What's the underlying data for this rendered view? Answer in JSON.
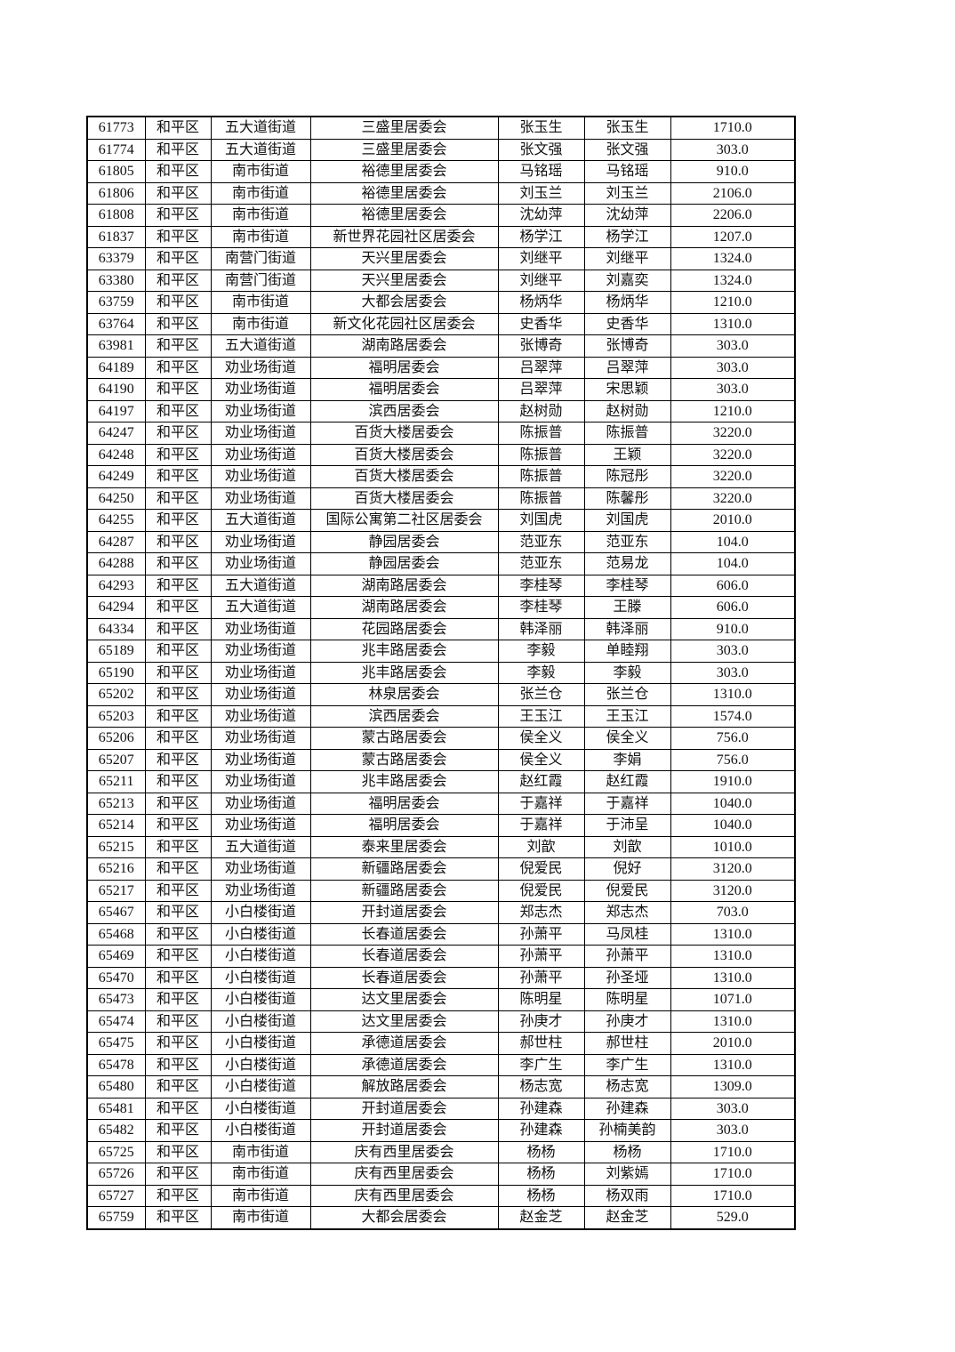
{
  "table": {
    "rows": [
      [
        "61773",
        "和平区",
        "五大道街道",
        "三盛里居委会",
        "张玉生",
        "张玉生",
        "1710.0"
      ],
      [
        "61774",
        "和平区",
        "五大道街道",
        "三盛里居委会",
        "张文强",
        "张文强",
        "303.0"
      ],
      [
        "61805",
        "和平区",
        "南市街道",
        "裕德里居委会",
        "马铭瑶",
        "马铭瑶",
        "910.0"
      ],
      [
        "61806",
        "和平区",
        "南市街道",
        "裕德里居委会",
        "刘玉兰",
        "刘玉兰",
        "2106.0"
      ],
      [
        "61808",
        "和平区",
        "南市街道",
        "裕德里居委会",
        "沈幼萍",
        "沈幼萍",
        "2206.0"
      ],
      [
        "61837",
        "和平区",
        "南市街道",
        "新世界花园社区居委会",
        "杨学江",
        "杨学江",
        "1207.0"
      ],
      [
        "63379",
        "和平区",
        "南营门街道",
        "天兴里居委会",
        "刘继平",
        "刘继平",
        "1324.0"
      ],
      [
        "63380",
        "和平区",
        "南营门街道",
        "天兴里居委会",
        "刘继平",
        "刘嘉奕",
        "1324.0"
      ],
      [
        "63759",
        "和平区",
        "南市街道",
        "大都会居委会",
        "杨炳华",
        "杨炳华",
        "1210.0"
      ],
      [
        "63764",
        "和平区",
        "南市街道",
        "新文化花园社区居委会",
        "史香华",
        "史香华",
        "1310.0"
      ],
      [
        "63981",
        "和平区",
        "五大道街道",
        "湖南路居委会",
        "张博奇",
        "张博奇",
        "303.0"
      ],
      [
        "64189",
        "和平区",
        "劝业场街道",
        "福明居委会",
        "吕翠萍",
        "吕翠萍",
        "303.0"
      ],
      [
        "64190",
        "和平区",
        "劝业场街道",
        "福明居委会",
        "吕翠萍",
        "宋思颖",
        "303.0"
      ],
      [
        "64197",
        "和平区",
        "劝业场街道",
        "滨西居委会",
        "赵树勋",
        "赵树勋",
        "1210.0"
      ],
      [
        "64247",
        "和平区",
        "劝业场街道",
        "百货大楼居委会",
        "陈振普",
        "陈振普",
        "3220.0"
      ],
      [
        "64248",
        "和平区",
        "劝业场街道",
        "百货大楼居委会",
        "陈振普",
        "王颖",
        "3220.0"
      ],
      [
        "64249",
        "和平区",
        "劝业场街道",
        "百货大楼居委会",
        "陈振普",
        "陈冠彤",
        "3220.0"
      ],
      [
        "64250",
        "和平区",
        "劝业场街道",
        "百货大楼居委会",
        "陈振普",
        "陈馨彤",
        "3220.0"
      ],
      [
        "64255",
        "和平区",
        "五大道街道",
        "国际公寓第二社区居委会",
        "刘国虎",
        "刘国虎",
        "2010.0"
      ],
      [
        "64287",
        "和平区",
        "劝业场街道",
        "静园居委会",
        "范亚东",
        "范亚东",
        "104.0"
      ],
      [
        "64288",
        "和平区",
        "劝业场街道",
        "静园居委会",
        "范亚东",
        "范易龙",
        "104.0"
      ],
      [
        "64293",
        "和平区",
        "五大道街道",
        "湖南路居委会",
        "李桂琴",
        "李桂琴",
        "606.0"
      ],
      [
        "64294",
        "和平区",
        "五大道街道",
        "湖南路居委会",
        "李桂琴",
        "王滕",
        "606.0"
      ],
      [
        "64334",
        "和平区",
        "劝业场街道",
        "花园路居委会",
        "韩泽丽",
        "韩泽丽",
        "910.0"
      ],
      [
        "65189",
        "和平区",
        "劝业场街道",
        "兆丰路居委会",
        "李毅",
        "单睦翔",
        "303.0"
      ],
      [
        "65190",
        "和平区",
        "劝业场街道",
        "兆丰路居委会",
        "李毅",
        "李毅",
        "303.0"
      ],
      [
        "65202",
        "和平区",
        "劝业场街道",
        "林泉居委会",
        "张兰仓",
        "张兰仓",
        "1310.0"
      ],
      [
        "65203",
        "和平区",
        "劝业场街道",
        "滨西居委会",
        "王玉江",
        "王玉江",
        "1574.0"
      ],
      [
        "65206",
        "和平区",
        "劝业场街道",
        "蒙古路居委会",
        "侯全义",
        "侯全义",
        "756.0"
      ],
      [
        "65207",
        "和平区",
        "劝业场街道",
        "蒙古路居委会",
        "侯全义",
        "李娟",
        "756.0"
      ],
      [
        "65211",
        "和平区",
        "劝业场街道",
        "兆丰路居委会",
        "赵红霞",
        "赵红霞",
        "1910.0"
      ],
      [
        "65213",
        "和平区",
        "劝业场街道",
        "福明居委会",
        "于嘉祥",
        "于嘉祥",
        "1040.0"
      ],
      [
        "65214",
        "和平区",
        "劝业场街道",
        "福明居委会",
        "于嘉祥",
        "于沛呈",
        "1040.0"
      ],
      [
        "65215",
        "和平区",
        "五大道街道",
        "泰来里居委会",
        "刘歆",
        "刘歆",
        "1010.0"
      ],
      [
        "65216",
        "和平区",
        "劝业场街道",
        "新疆路居委会",
        "倪爱民",
        "倪好",
        "3120.0"
      ],
      [
        "65217",
        "和平区",
        "劝业场街道",
        "新疆路居委会",
        "倪爱民",
        "倪爱民",
        "3120.0"
      ],
      [
        "65467",
        "和平区",
        "小白楼街道",
        "开封道居委会",
        "郑志杰",
        "郑志杰",
        "703.0"
      ],
      [
        "65468",
        "和平区",
        "小白楼街道",
        "长春道居委会",
        "孙萧平",
        "马凤桂",
        "1310.0"
      ],
      [
        "65469",
        "和平区",
        "小白楼街道",
        "长春道居委会",
        "孙萧平",
        "孙萧平",
        "1310.0"
      ],
      [
        "65470",
        "和平区",
        "小白楼街道",
        "长春道居委会",
        "孙萧平",
        "孙圣垭",
        "1310.0"
      ],
      [
        "65473",
        "和平区",
        "小白楼街道",
        "达文里居委会",
        "陈明星",
        "陈明星",
        "1071.0"
      ],
      [
        "65474",
        "和平区",
        "小白楼街道",
        "达文里居委会",
        "孙庚才",
        "孙庚才",
        "1310.0"
      ],
      [
        "65475",
        "和平区",
        "小白楼街道",
        "承德道居委会",
        "郝世柱",
        "郝世柱",
        "2010.0"
      ],
      [
        "65478",
        "和平区",
        "小白楼街道",
        "承德道居委会",
        "李广生",
        "李广生",
        "1310.0"
      ],
      [
        "65480",
        "和平区",
        "小白楼街道",
        "解放路居委会",
        "杨志宽",
        "杨志宽",
        "1309.0"
      ],
      [
        "65481",
        "和平区",
        "小白楼街道",
        "开封道居委会",
        "孙建森",
        "孙建森",
        "303.0"
      ],
      [
        "65482",
        "和平区",
        "小白楼街道",
        "开封道居委会",
        "孙建森",
        "孙楠美韵",
        "303.0"
      ],
      [
        "65725",
        "和平区",
        "南市街道",
        "庆有西里居委会",
        "杨杨",
        "杨杨",
        "1710.0"
      ],
      [
        "65726",
        "和平区",
        "南市街道",
        "庆有西里居委会",
        "杨杨",
        "刘紫嫣",
        "1710.0"
      ],
      [
        "65727",
        "和平区",
        "南市街道",
        "庆有西里居委会",
        "杨杨",
        "杨双雨",
        "1710.0"
      ],
      [
        "65759",
        "和平区",
        "南市街道",
        "大都会居委会",
        "赵金芝",
        "赵金芝",
        "529.0"
      ]
    ]
  }
}
